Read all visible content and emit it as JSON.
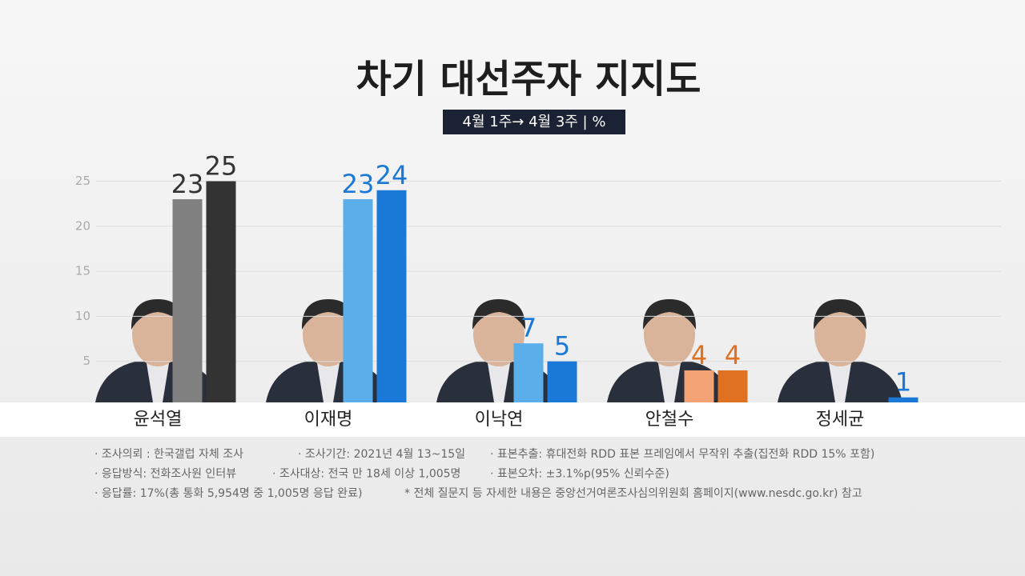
{
  "chart_data": {
    "type": "bar",
    "title": "차기 대선주자 지지도",
    "subtitle": "4월 1주→ 4월 3주 | %",
    "categories": [
      "윤석열",
      "이재명",
      "이낙연",
      "안철수",
      "정세균"
    ],
    "series": [
      {
        "colors": [
          "#808080",
          "#5aaeea",
          "#5aaeea",
          "#f2a274",
          "#5aaeea"
        ],
        "values": [
          23,
          23,
          7,
          4,
          null
        ]
      },
      {
        "colors": [
          "#333333",
          "#1a78d6",
          "#1a78d6",
          "#e07022",
          "#1a78d6"
        ],
        "values": [
          25,
          24,
          5,
          4,
          1
        ]
      }
    ],
    "ylim": [
      0,
      27
    ],
    "yticks": [
      5,
      10,
      15,
      20,
      25
    ],
    "grid": true,
    "notes": [
      [
        "· 조사의뢰 : 한국갤럽 자체 조사",
        "· 조사기간: 2021년 4월 13~15일",
        "· 표본추출: 휴대전화 RDD 표본 프레임에서 무작위 추출(집전화 RDD 15% 포함)"
      ],
      [
        "· 응답방식: 전화조사원 인터뷰",
        "· 조사대상: 전국 만 18세 이상 1,005명",
        "· 표본오차: ±3.1%p(95% 신뢰수준)"
      ],
      [
        "· 응답률: 17%(총 통화 5,954명 중 1,005명 응답 완료)",
        "* 전체 질문지 등 자세한 내용은 중앙선거여론조사심의위원회 홈페이지(www.nesdc.go.kr) 참고"
      ]
    ]
  }
}
